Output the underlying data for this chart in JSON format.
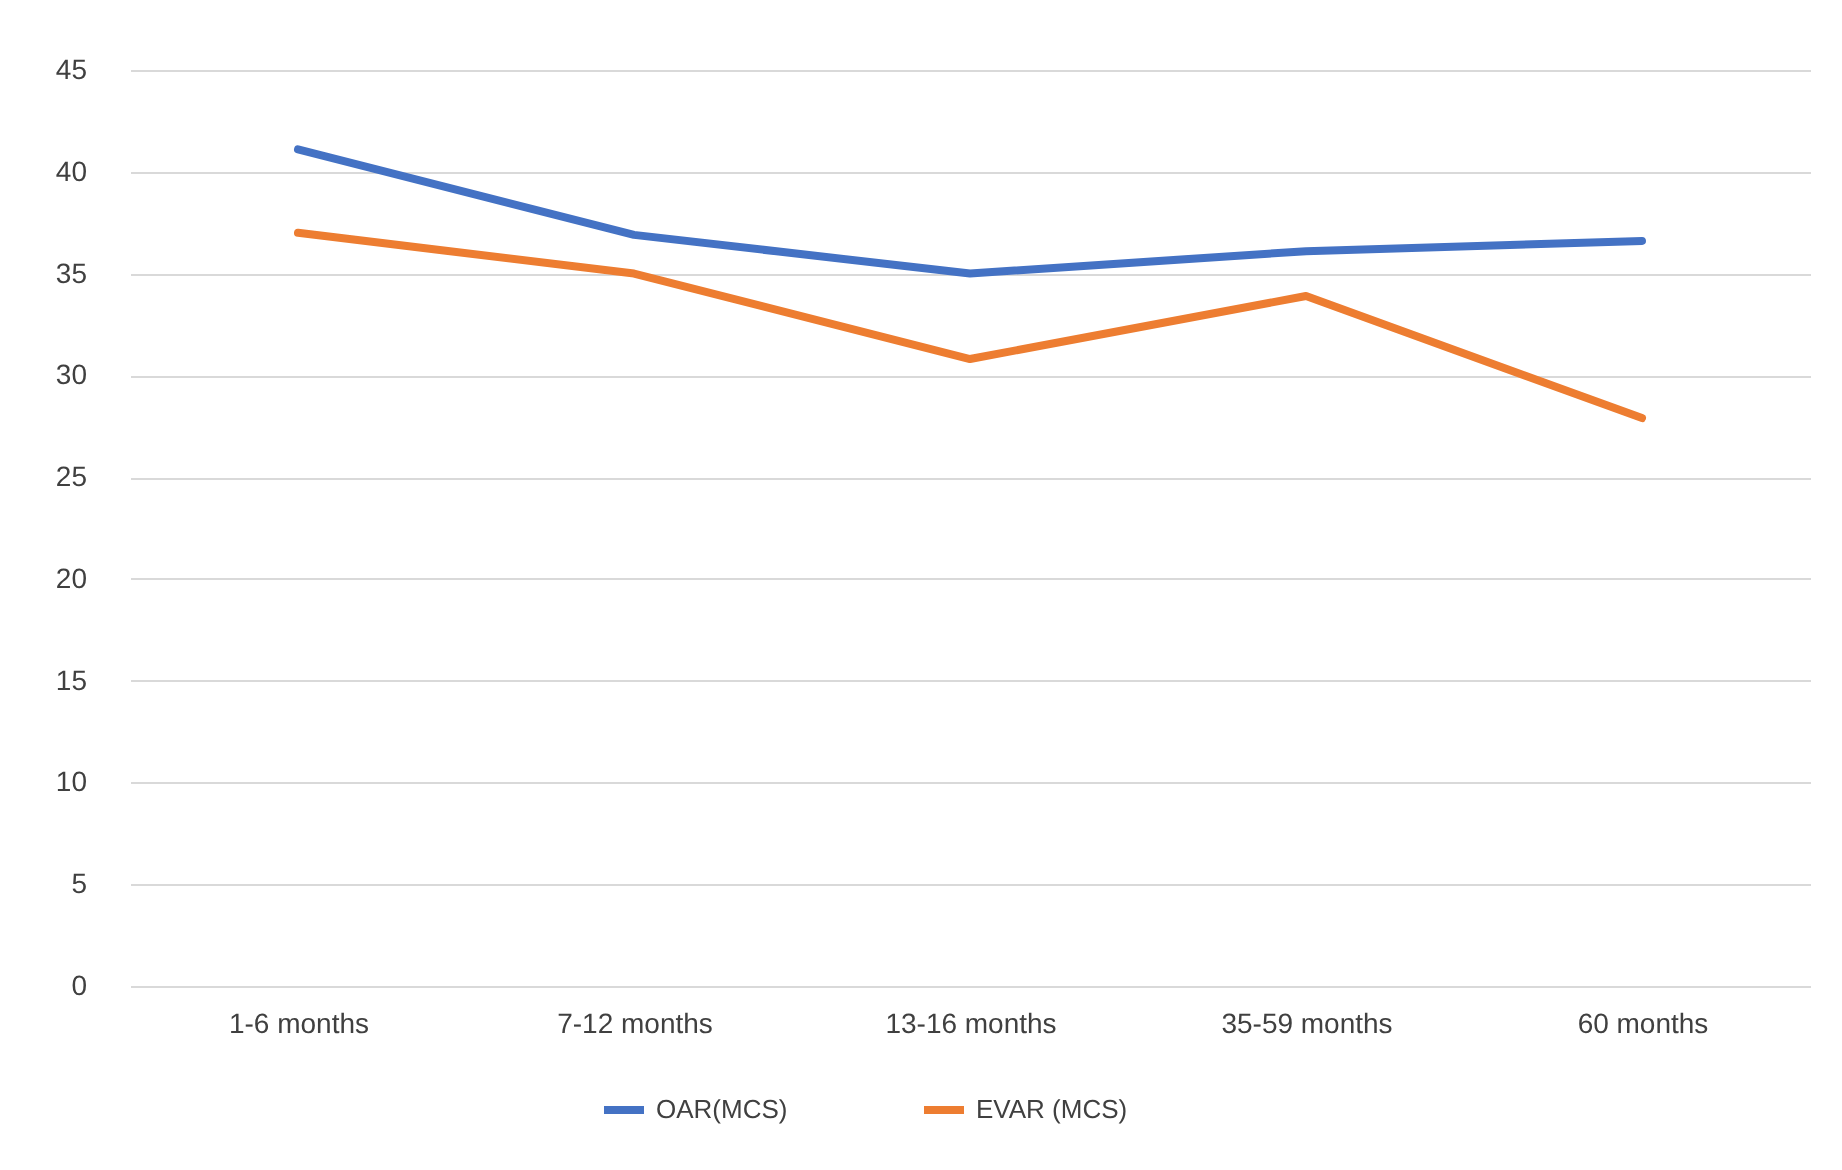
{
  "chart_data": {
    "type": "line",
    "categories": [
      "1-6 months",
      "7-12 months",
      "13-16 months",
      "35-59 months",
      "60 months"
    ],
    "series": [
      {
        "name": "OAR(MCS)",
        "color": "#4472c4",
        "values": [
          41.1,
          36.9,
          35.0,
          36.1,
          36.6
        ]
      },
      {
        "name": "EVAR (MCS)",
        "color": "#ed7d31",
        "values": [
          37.0,
          35.0,
          30.8,
          33.9,
          27.9
        ]
      }
    ],
    "ylim": [
      0,
      45
    ],
    "yticks": [
      0,
      5,
      10,
      15,
      20,
      25,
      30,
      35,
      40,
      45
    ],
    "grid": "y",
    "legend": "bottom",
    "marker": "none",
    "line_style": "solid"
  }
}
